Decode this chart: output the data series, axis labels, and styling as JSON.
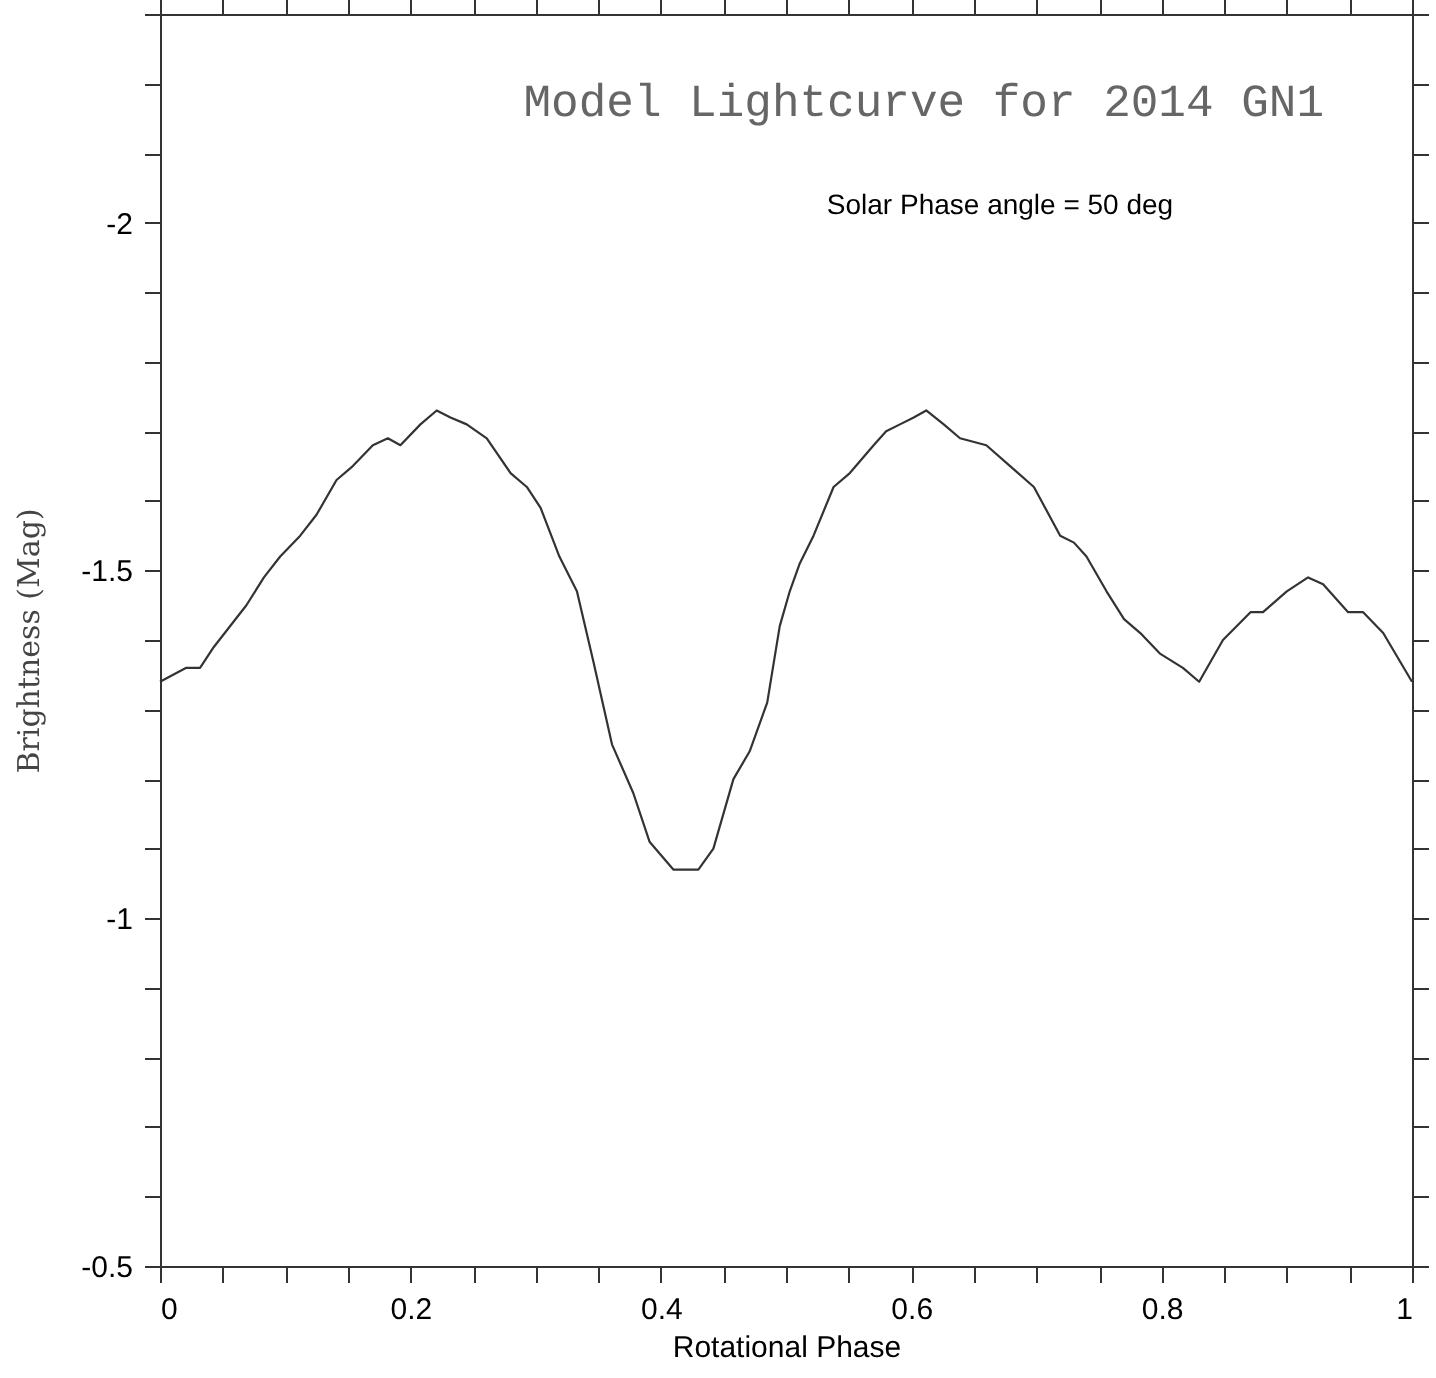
{
  "chart_data": {
    "type": "line",
    "title": "Model Lightcurve for 2014 GN1",
    "subtitle": "Solar Phase angle = 50 deg",
    "xlabel": "Rotational Phase",
    "ylabel": "Brightness (Mag)",
    "x": [
      0.0,
      0.021,
      0.032,
      0.043,
      0.069,
      0.083,
      0.096,
      0.112,
      0.125,
      0.141,
      0.154,
      0.17,
      0.182,
      0.192,
      0.208,
      0.221,
      0.232,
      0.245,
      0.261,
      0.28,
      0.293,
      0.304,
      0.319,
      0.333,
      0.346,
      0.361,
      0.378,
      0.391,
      0.41,
      0.421,
      0.43,
      0.442,
      0.458,
      0.471,
      0.485,
      0.495,
      0.503,
      0.511,
      0.522,
      0.538,
      0.551,
      0.57,
      0.58,
      0.591,
      0.602,
      0.612,
      0.626,
      0.639,
      0.66,
      0.679,
      0.698,
      0.719,
      0.73,
      0.74,
      0.756,
      0.77,
      0.783,
      0.799,
      0.817,
      0.83,
      0.849,
      0.871,
      0.881,
      0.9,
      0.917,
      0.929,
      0.949,
      0.961,
      0.977,
      1.0
    ],
    "series": [
      {
        "color": "#333333",
        "values": [
          -1.34,
          -1.36,
          -1.36,
          -1.39,
          -1.45,
          -1.49,
          -1.52,
          -1.55,
          -1.58,
          -1.63,
          -1.65,
          -1.68,
          -1.69,
          -1.68,
          -1.71,
          -1.73,
          -1.72,
          -1.71,
          -1.69,
          -1.64,
          -1.62,
          -1.59,
          -1.52,
          -1.47,
          -1.37,
          -1.25,
          -1.18,
          -1.11,
          -1.07,
          -1.07,
          -1.07,
          -1.1,
          -1.2,
          -1.24,
          -1.31,
          -1.42,
          -1.47,
          -1.51,
          -1.55,
          -1.62,
          -1.64,
          -1.68,
          -1.7,
          -1.71,
          -1.72,
          -1.73,
          -1.71,
          -1.69,
          -1.68,
          -1.65,
          -1.62,
          -1.55,
          -1.54,
          -1.52,
          -1.47,
          -1.43,
          -1.41,
          -1.38,
          -1.36,
          -1.34,
          -1.4,
          -1.44,
          -1.44,
          -1.47,
          -1.49,
          -1.48,
          -1.44,
          -1.44,
          -1.41,
          -1.34
        ]
      }
    ],
    "xlim": [
      0,
      1
    ],
    "ylim": [
      -0.5,
      -2.3
    ],
    "xticks": [
      0,
      {
        "value": 0.05,
        "label": null
      },
      {
        "value": 0.1,
        "label": null
      },
      {
        "value": 0.15,
        "label": null
      },
      0.2,
      {
        "value": 0.25,
        "label": null
      },
      {
        "value": 0.3,
        "label": null
      },
      {
        "value": 0.35,
        "label": null
      },
      0.4,
      {
        "value": 0.45,
        "label": null
      },
      {
        "value": 0.5,
        "label": null
      },
      {
        "value": 0.55,
        "label": null
      },
      0.6,
      {
        "value": 0.65,
        "label": null
      },
      {
        "value": 0.7,
        "label": null
      },
      {
        "value": 0.75,
        "label": null
      },
      0.8,
      {
        "value": 0.85,
        "label": null
      },
      {
        "value": 0.9,
        "label": null
      },
      {
        "value": 0.95,
        "label": null
      },
      1
    ],
    "yticks": [
      -0.5,
      {
        "value": -0.6,
        "label": null
      },
      {
        "value": -0.7,
        "label": null
      },
      {
        "value": -0.8,
        "label": null
      },
      {
        "value": -0.9,
        "label": null
      },
      -1,
      {
        "value": -1.1,
        "label": null
      },
      {
        "value": -1.2,
        "label": null
      },
      {
        "value": -1.3,
        "label": null
      },
      {
        "value": -1.4,
        "label": null
      },
      -1.5,
      {
        "value": -1.6,
        "label": null
      },
      {
        "value": -1.7,
        "label": null
      },
      {
        "value": -1.8,
        "label": null
      },
      {
        "value": -1.9,
        "label": null
      },
      -2,
      {
        "value": -2.1,
        "label": null
      },
      {
        "value": -2.2,
        "label": null
      },
      {
        "value": -2.3,
        "label": null
      }
    ],
    "grid": false,
    "marker": "none",
    "line_style": "solid"
  }
}
